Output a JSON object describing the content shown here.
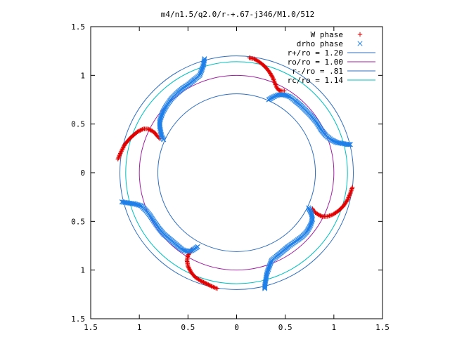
{
  "chart_data": {
    "type": "scatter",
    "title": "m4/n1.5/q2.0/r-+.67-j346/M1.0/512",
    "xlabel": "",
    "ylabel": "",
    "xlim": [
      -1.5,
      1.5
    ],
    "ylim": [
      -1.5,
      1.5
    ],
    "x_tick_values": [
      -1.5,
      -1,
      -0.5,
      0,
      0.5,
      1,
      1.5
    ],
    "x_tick_labels": [
      "1.5",
      "1",
      "0.5",
      "0",
      "0.5",
      "1",
      "1.5"
    ],
    "y_tick_values": [
      1.5,
      1,
      0.5,
      0,
      -0.5,
      -1,
      -1.5
    ],
    "y_tick_labels": [
      "1.5",
      "1",
      "0.5",
      "0",
      "0.5",
      "1",
      "1.5"
    ],
    "legend_position": "top-right",
    "grid": false,
    "circles": [
      {
        "name": "r+/ro = 1.20",
        "radius": 1.2,
        "color": "#2f6fbf"
      },
      {
        "name": "ro/ro = 1.00",
        "radius": 1.0,
        "color": "#a020a0"
      },
      {
        "name": "r-/ro = .81",
        "radius": 0.81,
        "color": "#2f6fbf"
      },
      {
        "name": "rc/ro = 1.14",
        "radius": 1.14,
        "color": "#00c0c0"
      }
    ],
    "series": [
      {
        "name": "W phase",
        "marker": "+",
        "color": "#e00000",
        "points": [
          [
            0.13,
            1.18
          ],
          [
            0.18,
            1.17
          ],
          [
            0.23,
            1.14
          ],
          [
            0.27,
            1.11
          ],
          [
            0.31,
            1.07
          ],
          [
            0.34,
            1.03
          ],
          [
            0.37,
            0.98
          ],
          [
            0.39,
            0.93
          ],
          [
            0.41,
            0.88
          ],
          [
            0.43,
            0.85
          ],
          [
            0.46,
            0.84
          ],
          [
            0.49,
            0.84
          ],
          [
            -1.22,
            0.14
          ],
          [
            -1.19,
            0.21
          ],
          [
            -1.15,
            0.29
          ],
          [
            -1.09,
            0.36
          ],
          [
            -1.02,
            0.42
          ],
          [
            -0.96,
            0.45
          ],
          [
            -0.91,
            0.45
          ],
          [
            -0.87,
            0.43
          ],
          [
            -0.84,
            0.41
          ],
          [
            -0.82,
            0.38
          ],
          [
            -0.8,
            0.36
          ],
          [
            -0.79,
            0.35
          ],
          [
            -0.2,
            -1.19
          ],
          [
            -0.25,
            -1.17
          ],
          [
            -0.31,
            -1.14
          ],
          [
            -0.37,
            -1.11
          ],
          [
            -0.43,
            -1.07
          ],
          [
            -0.47,
            -1.02
          ],
          [
            -0.5,
            -0.96
          ],
          [
            -0.51,
            -0.9
          ],
          [
            -0.5,
            -0.85
          ],
          [
            -0.48,
            -0.82
          ],
          [
            -0.46,
            -0.79
          ],
          [
            1.19,
            -0.15
          ],
          [
            1.17,
            -0.21
          ],
          [
            1.14,
            -0.28
          ],
          [
            1.1,
            -0.34
          ],
          [
            1.05,
            -0.39
          ],
          [
            0.99,
            -0.43
          ],
          [
            0.93,
            -0.45
          ],
          [
            0.88,
            -0.45
          ],
          [
            0.84,
            -0.43
          ],
          [
            0.81,
            -0.41
          ],
          [
            0.79,
            -0.39
          ],
          [
            0.78,
            -0.37
          ]
        ]
      },
      {
        "name": "drho phase",
        "marker": "x",
        "color": "#1f7fe8",
        "points": [
          [
            -0.33,
            1.17
          ],
          [
            -0.34,
            1.11
          ],
          [
            -0.36,
            1.05
          ],
          [
            -0.38,
            1.0
          ],
          [
            -0.43,
            0.96
          ],
          [
            -0.49,
            0.91
          ],
          [
            -0.55,
            0.87
          ],
          [
            -0.61,
            0.82
          ],
          [
            -0.67,
            0.76
          ],
          [
            -0.72,
            0.69
          ],
          [
            -0.76,
            0.62
          ],
          [
            -0.79,
            0.53
          ],
          [
            -0.79,
            0.47
          ],
          [
            -0.78,
            0.42
          ],
          [
            -0.77,
            0.37
          ],
          [
            -0.75,
            0.34
          ],
          [
            0.33,
            0.75
          ],
          [
            0.38,
            0.78
          ],
          [
            0.43,
            0.8
          ],
          [
            0.49,
            0.8
          ],
          [
            0.55,
            0.78
          ],
          [
            0.6,
            0.74
          ],
          [
            0.66,
            0.69
          ],
          [
            0.71,
            0.64
          ],
          [
            0.76,
            0.59
          ],
          [
            0.82,
            0.52
          ],
          [
            0.87,
            0.44
          ],
          [
            0.92,
            0.38
          ],
          [
            0.97,
            0.34
          ],
          [
            1.03,
            0.31
          ],
          [
            1.09,
            0.3
          ],
          [
            1.14,
            0.29
          ],
          [
            1.17,
            0.29
          ],
          [
            -1.18,
            -0.3
          ],
          [
            -1.12,
            -0.31
          ],
          [
            -1.05,
            -0.32
          ],
          [
            -0.98,
            -0.34
          ],
          [
            -0.93,
            -0.39
          ],
          [
            -0.89,
            -0.44
          ],
          [
            -0.85,
            -0.5
          ],
          [
            -0.8,
            -0.57
          ],
          [
            -0.75,
            -0.63
          ],
          [
            -0.69,
            -0.68
          ],
          [
            -0.62,
            -0.74
          ],
          [
            -0.56,
            -0.79
          ],
          [
            -0.5,
            -0.81
          ],
          [
            -0.46,
            -0.8
          ],
          [
            -0.43,
            -0.78
          ],
          [
            -0.4,
            -0.76
          ],
          [
            0.74,
            -0.36
          ],
          [
            0.77,
            -0.42
          ],
          [
            0.78,
            -0.48
          ],
          [
            0.76,
            -0.54
          ],
          [
            0.72,
            -0.61
          ],
          [
            0.67,
            -0.66
          ],
          [
            0.6,
            -0.71
          ],
          [
            0.53,
            -0.76
          ],
          [
            0.47,
            -0.81
          ],
          [
            0.41,
            -0.86
          ],
          [
            0.36,
            -0.9
          ],
          [
            0.33,
            -0.98
          ],
          [
            0.31,
            -1.04
          ],
          [
            0.3,
            -1.1
          ],
          [
            0.29,
            -1.16
          ],
          [
            0.29,
            -1.19
          ]
        ]
      }
    ]
  }
}
